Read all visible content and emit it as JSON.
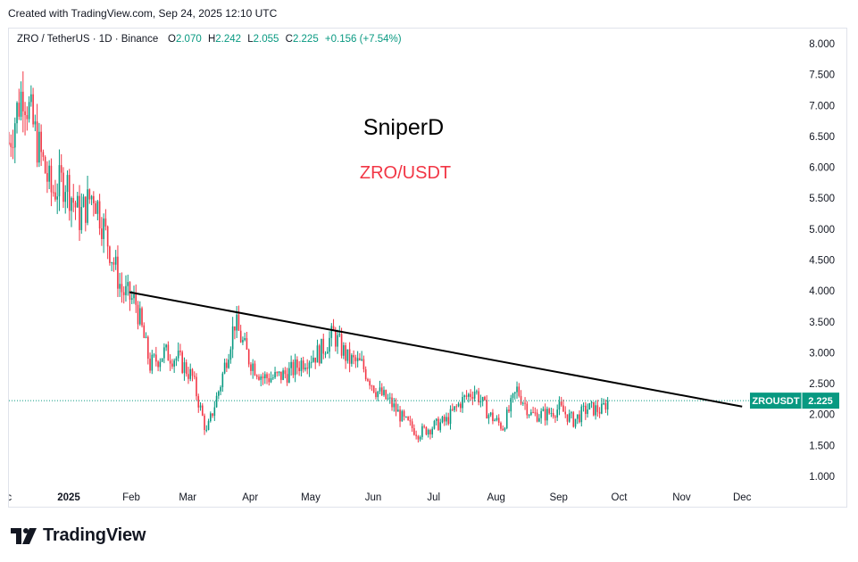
{
  "credit": "Created with TradingView.com, Sep 24, 2025 12:10 UTC",
  "brand": "TradingView",
  "colors": {
    "up": "#089981",
    "down": "#f23645",
    "trendline": "#000000",
    "label_bg": "#089981",
    "subtitle": "#f23645"
  },
  "chart_data": {
    "type": "candlestick",
    "title": "SniperD",
    "subtitle": "ZRO/USDT",
    "header": {
      "symbol": "ZRO / TetherUS · 1D · Binance",
      "o_label": "O",
      "o_value": "2.070",
      "h_label": "H",
      "h_value": "2.242",
      "l_label": "L",
      "l_value": "2.055",
      "c_label": "C",
      "c_value": "2.225",
      "change": "+0.156 (+7.54%)"
    },
    "price_label": {
      "ticker": "ZROUSDT",
      "value": "2.225",
      "price": 2.225
    },
    "y_ticks": [
      "8.000",
      "7.500",
      "7.000",
      "6.500",
      "6.000",
      "5.500",
      "5.000",
      "4.500",
      "4.000",
      "3.500",
      "3.000",
      "2.500",
      "2.000",
      "1.500",
      "1.000"
    ],
    "ylim": [
      0.82,
      8.22
    ],
    "x_ticks": [
      {
        "label": "ec",
        "date": "2024-12-01",
        "bold": false
      },
      {
        "label": "2025",
        "date": "2025-01-01",
        "bold": true
      },
      {
        "label": "Feb",
        "date": "2025-02-01",
        "bold": false
      },
      {
        "label": "Mar",
        "date": "2025-03-01",
        "bold": false
      },
      {
        "label": "Apr",
        "date": "2025-04-01",
        "bold": false
      },
      {
        "label": "May",
        "date": "2025-05-01",
        "bold": false
      },
      {
        "label": "Jun",
        "date": "2025-06-01",
        "bold": false
      },
      {
        "label": "Jul",
        "date": "2025-07-01",
        "bold": false
      },
      {
        "label": "Aug",
        "date": "2025-08-01",
        "bold": false
      },
      {
        "label": "Sep",
        "date": "2025-09-01",
        "bold": false
      },
      {
        "label": "Oct",
        "date": "2025-10-01",
        "bold": false
      },
      {
        "label": "Nov",
        "date": "2025-11-01",
        "bold": false
      },
      {
        "label": "Dec",
        "date": "2025-12-01",
        "bold": false
      }
    ],
    "trendline": {
      "start": {
        "date": "2025-01-31",
        "price": 3.98
      },
      "end": {
        "date": "2025-12-01",
        "price": 2.13
      }
    },
    "series": [
      {
        "date": "2024-12-01",
        "close": 6.4
      },
      {
        "date": "2024-12-08",
        "close": 7.3
      },
      {
        "date": "2024-12-15",
        "close": 6.4
      },
      {
        "date": "2024-12-22",
        "close": 5.6
      },
      {
        "date": "2024-12-29",
        "close": 5.8
      },
      {
        "date": "2025-01-05",
        "close": 5.2
      },
      {
        "date": "2025-01-12",
        "close": 5.6
      },
      {
        "date": "2025-01-19",
        "close": 4.8
      },
      {
        "date": "2025-01-26",
        "close": 4.0
      },
      {
        "date": "2025-02-02",
        "close": 3.8
      },
      {
        "date": "2025-02-09",
        "close": 2.8
      },
      {
        "date": "2025-02-16",
        "close": 3.0
      },
      {
        "date": "2025-02-23",
        "close": 2.9
      },
      {
        "date": "2025-03-02",
        "close": 2.6
      },
      {
        "date": "2025-03-09",
        "close": 1.7
      },
      {
        "date": "2025-03-16",
        "close": 2.5
      },
      {
        "date": "2025-03-23",
        "close": 3.5
      },
      {
        "date": "2025-03-30",
        "close": 2.9
      },
      {
        "date": "2025-04-06",
        "close": 2.6
      },
      {
        "date": "2025-04-13",
        "close": 2.6
      },
      {
        "date": "2025-04-20",
        "close": 2.7
      },
      {
        "date": "2025-04-27",
        "close": 2.9
      },
      {
        "date": "2025-05-04",
        "close": 3.0
      },
      {
        "date": "2025-05-11",
        "close": 3.3
      },
      {
        "date": "2025-05-18",
        "close": 2.9
      },
      {
        "date": "2025-05-25",
        "close": 2.8
      },
      {
        "date": "2025-06-01",
        "close": 2.4
      },
      {
        "date": "2025-06-08",
        "close": 2.2
      },
      {
        "date": "2025-06-15",
        "close": 1.9
      },
      {
        "date": "2025-06-22",
        "close": 1.7
      },
      {
        "date": "2025-06-29",
        "close": 1.8
      },
      {
        "date": "2025-07-06",
        "close": 1.9
      },
      {
        "date": "2025-07-13",
        "close": 2.2
      },
      {
        "date": "2025-07-20",
        "close": 2.4
      },
      {
        "date": "2025-07-27",
        "close": 2.0
      },
      {
        "date": "2025-08-03",
        "close": 1.8
      },
      {
        "date": "2025-08-10",
        "close": 2.4
      },
      {
        "date": "2025-08-17",
        "close": 2.0
      },
      {
        "date": "2025-08-24",
        "close": 2.0
      },
      {
        "date": "2025-08-31",
        "close": 2.1
      },
      {
        "date": "2025-09-07",
        "close": 1.9
      },
      {
        "date": "2025-09-14",
        "close": 2.1
      },
      {
        "date": "2025-09-21",
        "close": 2.07
      },
      {
        "date": "2025-09-24",
        "close": 2.225
      }
    ]
  }
}
